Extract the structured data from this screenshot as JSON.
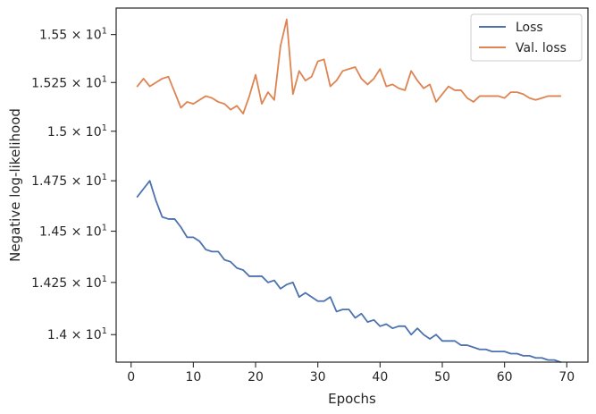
{
  "chart_data": {
    "type": "line",
    "xlabel": "Epochs",
    "ylabel": "Negative log-likelihood",
    "xlim": [
      -2.4,
      73.4
    ],
    "ylim": [
      13.87,
      15.64
    ],
    "xticks": [
      0,
      10,
      20,
      30,
      40,
      50,
      60,
      70
    ],
    "xtick_labels": [
      "0",
      "10",
      "20",
      "30",
      "40",
      "50",
      "60",
      "70"
    ],
    "yticks": [
      14.0,
      14.25,
      14.5,
      14.75,
      15.0,
      15.25,
      15.5
    ],
    "ytick_labels": [
      {
        "mantissa": "1.4",
        "base": "10",
        "exp": "1"
      },
      {
        "mantissa": "1.425",
        "base": "10",
        "exp": "1"
      },
      {
        "mantissa": "1.45",
        "base": "10",
        "exp": "1"
      },
      {
        "mantissa": "1.475",
        "base": "10",
        "exp": "1"
      },
      {
        "mantissa": "1.5",
        "base": "10",
        "exp": "1"
      },
      {
        "mantissa": "1.525",
        "base": "10",
        "exp": "1"
      },
      {
        "mantissa": "1.55",
        "base": "10",
        "exp": "1"
      }
    ],
    "y_scale": "log",
    "grid": false,
    "legend_position": "top-right",
    "x": [
      1,
      2,
      3,
      4,
      5,
      6,
      7,
      8,
      9,
      10,
      11,
      12,
      13,
      14,
      15,
      16,
      17,
      18,
      19,
      20,
      21,
      22,
      23,
      24,
      25,
      26,
      27,
      28,
      29,
      30,
      31,
      32,
      33,
      34,
      35,
      36,
      37,
      38,
      39,
      40,
      41,
      42,
      43,
      44,
      45,
      46,
      47,
      48,
      49,
      50,
      51,
      52,
      53,
      54,
      55,
      56,
      57,
      58,
      59,
      60,
      61,
      62,
      63,
      64,
      65,
      66,
      67,
      68,
      69
    ],
    "series": [
      {
        "name": "Loss",
        "color": "#4c72b0",
        "values": [
          14.67,
          14.71,
          14.75,
          14.65,
          14.57,
          14.56,
          14.56,
          14.52,
          14.47,
          14.47,
          14.45,
          14.41,
          14.4,
          14.4,
          14.36,
          14.35,
          14.32,
          14.31,
          14.28,
          14.28,
          14.28,
          14.25,
          14.26,
          14.22,
          14.24,
          14.25,
          14.18,
          14.2,
          14.18,
          14.16,
          14.16,
          14.18,
          14.11,
          14.12,
          14.12,
          14.08,
          14.1,
          14.06,
          14.07,
          14.04,
          14.05,
          14.03,
          14.04,
          14.04,
          14.0,
          14.03,
          14.0,
          13.98,
          14.0,
          13.97,
          13.97,
          13.97,
          13.95,
          13.95,
          13.94,
          13.93,
          13.93,
          13.92,
          13.92,
          13.92,
          13.91,
          13.91,
          13.9,
          13.9,
          13.89,
          13.89,
          13.88,
          13.88,
          13.87
        ]
      },
      {
        "name": "Val. loss",
        "color": "#dd8452",
        "values": [
          15.23,
          15.27,
          15.23,
          15.25,
          15.27,
          15.28,
          15.2,
          15.12,
          15.15,
          15.14,
          15.16,
          15.18,
          15.17,
          15.15,
          15.14,
          15.11,
          15.13,
          15.09,
          15.18,
          15.29,
          15.14,
          15.2,
          15.16,
          15.44,
          15.58,
          15.19,
          15.31,
          15.26,
          15.28,
          15.36,
          15.37,
          15.23,
          15.26,
          15.31,
          15.32,
          15.33,
          15.27,
          15.24,
          15.27,
          15.32,
          15.23,
          15.24,
          15.22,
          15.21,
          15.31,
          15.26,
          15.22,
          15.24,
          15.15,
          15.19,
          15.23,
          15.21,
          15.21,
          15.17,
          15.15,
          15.18,
          15.18,
          15.18,
          15.18,
          15.17,
          15.2,
          15.2,
          15.19,
          15.17,
          15.16,
          15.17,
          15.18,
          15.18,
          15.18
        ]
      }
    ]
  }
}
